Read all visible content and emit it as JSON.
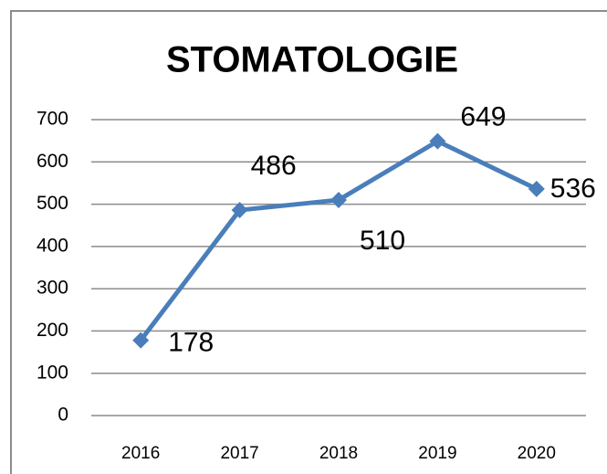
{
  "chart_data": {
    "type": "line",
    "title": "STOMATOLOGIE",
    "categories": [
      "2016",
      "2017",
      "2018",
      "2019",
      "2020"
    ],
    "values": [
      178,
      486,
      510,
      649,
      536
    ],
    "color": "#4a7ebb",
    "ylim": [
      0,
      700
    ],
    "yticks": [
      0,
      100,
      200,
      300,
      400,
      500,
      600,
      700
    ],
    "grid": true
  }
}
